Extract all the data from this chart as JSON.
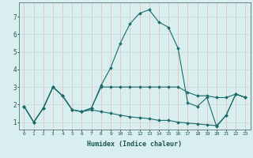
{
  "xlabel": "Humidex (Indice chaleur)",
  "background_color": "#d9eeee",
  "grid_color": "#c8d8d8",
  "grid_color_v": "#e8b8b8",
  "line_color": "#1a6b6b",
  "x_ticks": [
    0,
    1,
    2,
    3,
    4,
    5,
    6,
    7,
    8,
    9,
    10,
    11,
    12,
    13,
    14,
    15,
    16,
    17,
    18,
    19,
    20,
    21,
    22,
    23
  ],
  "y_ticks": [
    1,
    2,
    3,
    4,
    5,
    6,
    7
  ],
  "ylim": [
    0.6,
    7.8
  ],
  "xlim": [
    -0.5,
    23.5
  ],
  "series": [
    [
      1.9,
      1.0,
      1.8,
      3.0,
      2.5,
      1.7,
      1.6,
      1.8,
      3.1,
      4.1,
      5.5,
      6.6,
      7.2,
      7.4,
      6.7,
      6.4,
      5.2,
      2.1,
      1.9,
      2.4,
      0.75,
      1.4,
      2.6,
      2.4
    ],
    [
      1.9,
      1.0,
      1.8,
      3.0,
      2.5,
      1.7,
      1.6,
      1.8,
      3.0,
      3.0,
      3.0,
      3.0,
      3.0,
      3.0,
      3.0,
      3.0,
      3.0,
      2.7,
      2.5,
      2.5,
      2.4,
      2.4,
      2.6,
      2.4
    ],
    [
      1.9,
      1.0,
      1.8,
      3.0,
      2.5,
      1.7,
      1.6,
      1.7,
      1.6,
      1.5,
      1.4,
      1.3,
      1.25,
      1.2,
      1.1,
      1.1,
      1.0,
      0.95,
      0.9,
      0.85,
      0.8,
      1.4,
      2.6,
      2.4
    ]
  ]
}
